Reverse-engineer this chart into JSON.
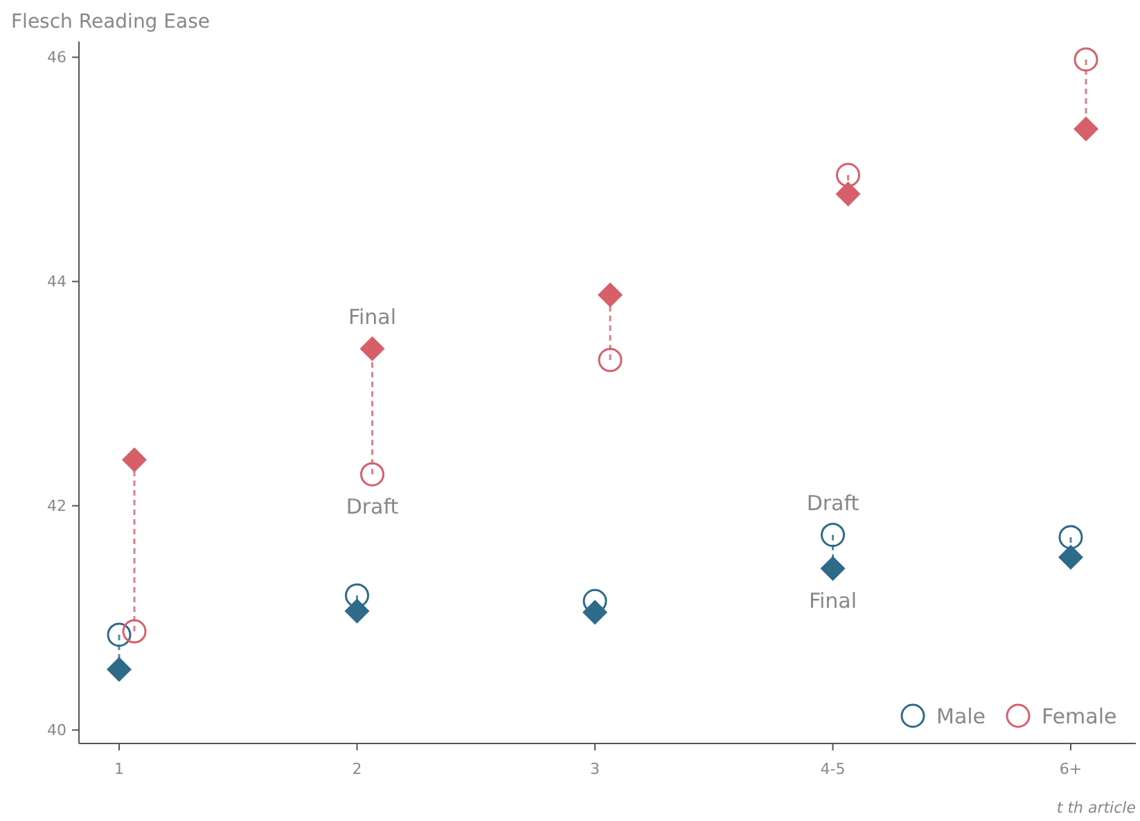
{
  "chart_data": {
    "type": "scatter",
    "ylabel": "Flesch Reading Ease",
    "xlabel": "t th article",
    "categories": [
      "1",
      "2",
      "3",
      "4-5",
      "6+"
    ],
    "ylim": [
      39.88,
      46.14
    ],
    "yticks": [
      40,
      42,
      44,
      46
    ],
    "grid": false,
    "legend": "bottom right",
    "line_style": "dashed",
    "series": [
      {
        "name": "Male",
        "color": "#2e6a8a",
        "marker": "circle",
        "values": [
          40.85,
          41.2,
          41.15,
          41.74,
          41.72
        ]
      },
      {
        "color": "#2e6a8a",
        "marker": "diamond",
        "values": [
          40.54,
          41.06,
          41.05,
          41.44,
          41.54
        ]
      },
      {
        "name": "Female",
        "color": "#d65f6a",
        "marker": "circle",
        "values": [
          40.88,
          42.28,
          43.3,
          44.95,
          45.98
        ]
      },
      {
        "color": "#d65f6a",
        "marker": "diamond",
        "values": [
          42.41,
          43.4,
          43.88,
          44.78,
          45.36
        ]
      }
    ],
    "annotations": [
      {
        "text": "Final",
        "x": "2",
        "y": 43.4
      },
      {
        "text": "Draft",
        "x": "2",
        "y": 42.28
      },
      {
        "text": "Draft",
        "x": "4-5",
        "y": 41.74
      },
      {
        "text": "Final",
        "x": "4-5",
        "y": 41.44
      }
    ]
  }
}
